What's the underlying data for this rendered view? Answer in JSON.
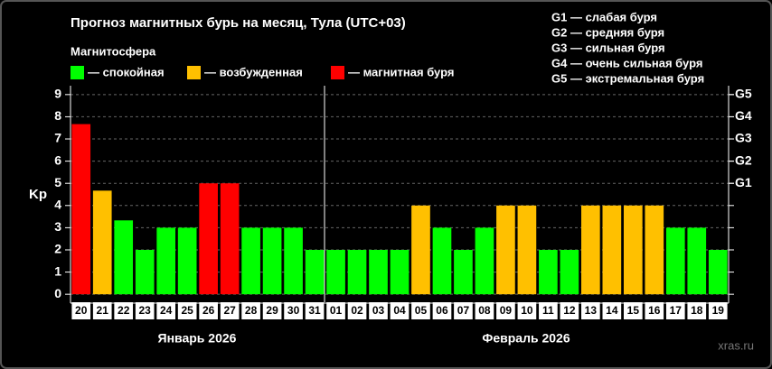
{
  "chart_data": {
    "type": "bar",
    "title": "Прогноз магнитных бурь на месяц, Тула (UTC+03)",
    "legend_title": "Магнитосфера",
    "legend": [
      {
        "label": "— спокойная",
        "color": "#00ff00"
      },
      {
        "label": "— возбужденная",
        "color": "#ffc000"
      },
      {
        "label": "— магнитная буря",
        "color": "#ff0000"
      }
    ],
    "g_legend": [
      "G1 — слабая буря",
      "G2 — средняя буря",
      "G3 — сильная буря",
      "G4 — очень сильная буря",
      "G5 — экстремальная буря"
    ],
    "y_label": "Kp",
    "categories": [
      "20",
      "21",
      "22",
      "23",
      "24",
      "25",
      "26",
      "27",
      "28",
      "29",
      "30",
      "31",
      "01",
      "02",
      "03",
      "04",
      "05",
      "06",
      "07",
      "08",
      "09",
      "10",
      "11",
      "12",
      "13",
      "14",
      "15",
      "16",
      "17",
      "18",
      "19"
    ],
    "values": [
      7.67,
      4.67,
      3.33,
      2,
      3,
      3,
      5,
      5,
      3,
      3,
      3,
      2,
      2,
      2,
      2,
      2,
      4,
      3,
      2,
      3,
      4,
      4,
      2,
      2,
      4,
      4,
      4,
      4,
      3,
      3,
      2
    ],
    "colors": [
      "#ff0000",
      "#ffc000",
      "#00ff00",
      "#00ff00",
      "#00ff00",
      "#00ff00",
      "#ff0000",
      "#ff0000",
      "#00ff00",
      "#00ff00",
      "#00ff00",
      "#00ff00",
      "#00ff00",
      "#00ff00",
      "#00ff00",
      "#00ff00",
      "#ffc000",
      "#00ff00",
      "#00ff00",
      "#00ff00",
      "#ffc000",
      "#ffc000",
      "#00ff00",
      "#00ff00",
      "#ffc000",
      "#ffc000",
      "#ffc000",
      "#ffc000",
      "#00ff00",
      "#00ff00",
      "#00ff00"
    ],
    "ylim": [
      -0.4,
      9.4
    ],
    "yticks": [
      0,
      1,
      2,
      3,
      4,
      5,
      6,
      7,
      8,
      9
    ],
    "y2lim": [
      -0.4,
      9.4
    ],
    "y2ticks": [
      {
        "value": 5,
        "label": "G1"
      },
      {
        "value": 6,
        "label": "G2"
      },
      {
        "value": 7,
        "label": "G3"
      },
      {
        "value": 8,
        "label": "G4"
      },
      {
        "value": 9,
        "label": "G5"
      }
    ],
    "grid": true,
    "x_groups": [
      "Январь 2026",
      "Февраль 2026"
    ],
    "watermark": "xras.ru"
  }
}
